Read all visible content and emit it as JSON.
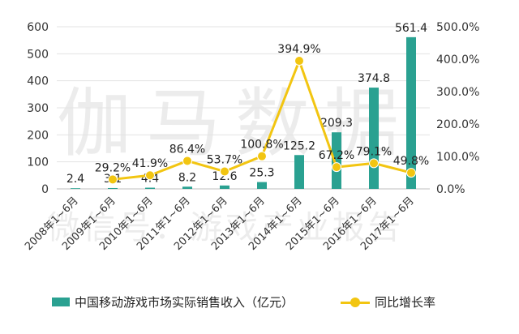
{
  "watermark": {
    "line1": "伽马数据",
    "line2": "微信号：游戏产业报告"
  },
  "colors": {
    "bar": "#2aa191",
    "line": "#f2c511",
    "grid": "#e3e3e3",
    "axis": "#bfbfbf",
    "text": "#333333"
  },
  "chart_data": {
    "type": "bar",
    "title": "",
    "categories": [
      "2008年1~6月",
      "2009年1~6月",
      "2010年1~6月",
      "2011年1~6月",
      "2012年1~6月",
      "2013年1~6月",
      "2014年1~6月",
      "2015年1~6月",
      "2016年1~6月",
      "2017年1~6月"
    ],
    "series": [
      {
        "name": "中国移动游戏市场实际销售收入（亿元）",
        "type": "bar",
        "axis": "left",
        "values": [
          2.4,
          3.1,
          4.4,
          8.2,
          12.6,
          25.3,
          125.2,
          209.3,
          374.8,
          561.4
        ],
        "labels": [
          "2.4",
          "3.1",
          "4.4",
          "8.2",
          "12.6",
          "25.3",
          "125.2",
          "209.3",
          "374.8",
          "561.4"
        ]
      },
      {
        "name": "同比增长率",
        "type": "line",
        "axis": "right",
        "values": [
          null,
          29.2,
          41.9,
          86.4,
          53.7,
          100.8,
          394.9,
          67.2,
          79.1,
          49.8
        ],
        "labels": [
          "",
          "29.2%",
          "41.9%",
          "86.4%",
          "53.7%",
          "100.8%",
          "394.9%",
          "67.2%",
          "79.1%",
          "49.8%"
        ]
      }
    ],
    "left_axis": {
      "ylim": [
        0,
        600
      ],
      "ticks": [
        0,
        100,
        200,
        300,
        400,
        500,
        600
      ],
      "tick_labels": [
        "0",
        "100",
        "200",
        "300",
        "400",
        "500",
        "600"
      ]
    },
    "right_axis": {
      "ylim": [
        0,
        500
      ],
      "ticks": [
        0,
        100,
        200,
        300,
        400,
        500
      ],
      "tick_labels": [
        "0.0%",
        "100.0%",
        "200.0%",
        "300.0%",
        "400.0%",
        "500.0%"
      ]
    },
    "grid": true,
    "legend_position": "bottom"
  }
}
